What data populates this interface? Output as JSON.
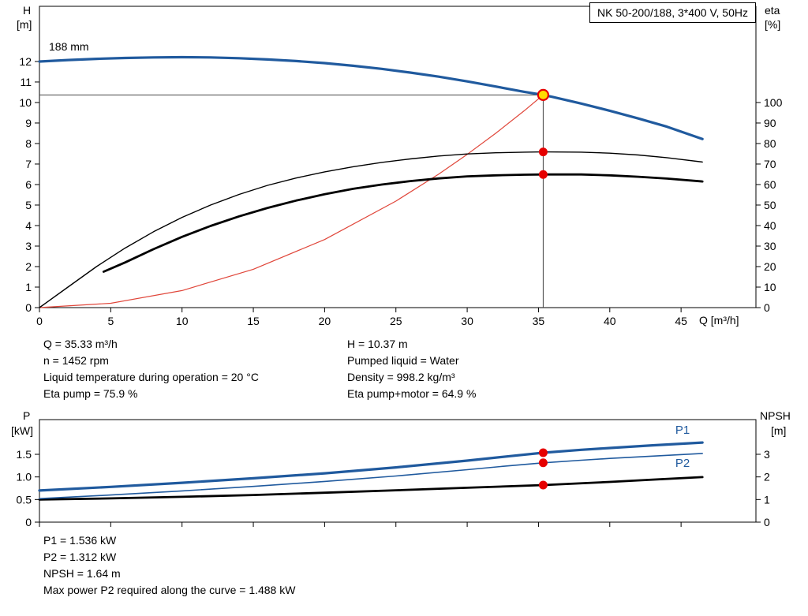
{
  "title_box": "NK 50-200/188, 3*400 V, 50Hz",
  "labels": {
    "impeller": "188 mm",
    "h_axis": [
      "H",
      "[m]"
    ],
    "eta_axis": [
      "eta",
      "[%]"
    ],
    "q_axis_unit": "Q [m³/h]",
    "p_axis": [
      "P",
      "[kW]"
    ],
    "npsh_axis": [
      "NPSH",
      "[m]"
    ]
  },
  "info_top_left": [
    "Q = 35.33 m³/h",
    "n = 1452 rpm",
    "Liquid temperature during operation = 20 °C",
    "Eta pump = 75.9 %"
  ],
  "info_top_right": [
    "H = 10.37 m",
    "Pumped liquid = Water",
    "Density = 998.2 kg/m³",
    "Eta pump+motor = 64.9 %"
  ],
  "info_bottom": [
    "P1 = 1.536 kW",
    "P2 = 1.312 kW",
    "NPSH = 1.64 m",
    "Max power P2 required along the curve = 1.488 kW"
  ],
  "colors": {
    "curve_blue": "#205a9e",
    "curve_red": "#e0463a",
    "dot_red": "#e60000",
    "duty_yellow": "#ffdd00",
    "black": "#000000",
    "crosshair": "#444444"
  },
  "duty_point": {
    "q": 35.33,
    "h": 10.37,
    "eta_pump": 75.9,
    "eta_pump_motor": 64.9,
    "p1": 1.536,
    "p2": 1.312,
    "npsh": 1.64
  },
  "chart_data": [
    {
      "type": "line",
      "name": "qh-eta-chart",
      "x": {
        "min": 0,
        "max": 50.25,
        "ticks": [
          [
            0,
            "0"
          ],
          [
            5,
            "5"
          ],
          [
            10,
            "10"
          ],
          [
            15,
            "15"
          ],
          [
            20,
            "20"
          ],
          [
            25,
            "25"
          ],
          [
            30,
            "30"
          ],
          [
            35,
            "35"
          ],
          [
            40,
            "40"
          ],
          [
            45,
            "45"
          ]
        ],
        "label": "Q [m³/h]"
      },
      "left": {
        "min": 0,
        "max": 14.69,
        "label": "H [m]",
        "ticks": [
          [
            0,
            "0"
          ],
          [
            1,
            "1"
          ],
          [
            2,
            "2"
          ],
          [
            3,
            "3"
          ],
          [
            4,
            "4"
          ],
          [
            5,
            "5"
          ],
          [
            6,
            "6"
          ],
          [
            7,
            "7"
          ],
          [
            8,
            "8"
          ],
          [
            9,
            "9"
          ],
          [
            10,
            "10"
          ],
          [
            11,
            "11"
          ],
          [
            12,
            "12"
          ]
        ]
      },
      "right": {
        "min": 0,
        "max": 146.9,
        "label": "eta [%]",
        "ticks": [
          [
            0,
            "0"
          ],
          [
            10,
            "10"
          ],
          [
            20,
            "20"
          ],
          [
            30,
            "30"
          ],
          [
            40,
            "40"
          ],
          [
            50,
            "50"
          ],
          [
            60,
            "60"
          ],
          [
            70,
            "70"
          ],
          [
            80,
            "80"
          ],
          [
            90,
            "90"
          ],
          [
            100,
            "100"
          ]
        ]
      },
      "crosshair": {
        "q": 35.33,
        "v": 10.37
      },
      "series": [
        {
          "name": "affinity-parabola",
          "axis": "left",
          "color": "#e0463a",
          "width": 1.2,
          "points": [
            [
              0,
              0
            ],
            [
              5,
              0.21
            ],
            [
              10,
              0.83
            ],
            [
              15,
              1.87
            ],
            [
              20,
              3.32
            ],
            [
              25,
              5.19
            ],
            [
              28,
              6.51
            ],
            [
              30,
              7.47
            ],
            [
              32,
              8.5
            ],
            [
              34,
              9.6
            ],
            [
              35.33,
              10.37
            ]
          ]
        },
        {
          "name": "eta-pump",
          "axis": "right",
          "color": "#000000",
          "width": 1.4,
          "points": [
            [
              0,
              0
            ],
            [
              2,
              10
            ],
            [
              4,
              20
            ],
            [
              6,
              29
            ],
            [
              8,
              37
            ],
            [
              10,
              44
            ],
            [
              12,
              50
            ],
            [
              14,
              55.2
            ],
            [
              16,
              59.6
            ],
            [
              18,
              63.2
            ],
            [
              20,
              66.2
            ],
            [
              22,
              68.7
            ],
            [
              24,
              70.8
            ],
            [
              26,
              72.5
            ],
            [
              28,
              73.9
            ],
            [
              30,
              74.9
            ],
            [
              32,
              75.5
            ],
            [
              34,
              75.8
            ],
            [
              35.33,
              75.9
            ],
            [
              38,
              75.8
            ],
            [
              40,
              75.3
            ],
            [
              42,
              74.4
            ],
            [
              44,
              73.1
            ],
            [
              46.5,
              71
            ]
          ]
        },
        {
          "name": "eta-pump-motor",
          "axis": "right",
          "color": "#000000",
          "width": 2.8,
          "points": [
            [
              4.5,
              17.5
            ],
            [
              6,
              22
            ],
            [
              8,
              28.5
            ],
            [
              10,
              34.5
            ],
            [
              12,
              39.8
            ],
            [
              14,
              44.5
            ],
            [
              16,
              48.6
            ],
            [
              18,
              52.2
            ],
            [
              20,
              55.3
            ],
            [
              22,
              57.9
            ],
            [
              24,
              60
            ],
            [
              26,
              61.7
            ],
            [
              28,
              63
            ],
            [
              30,
              64
            ],
            [
              32,
              64.5
            ],
            [
              34,
              64.8
            ],
            [
              35.33,
              64.9
            ],
            [
              38,
              64.9
            ],
            [
              40,
              64.5
            ],
            [
              42,
              63.8
            ],
            [
              44,
              62.9
            ],
            [
              46.5,
              61.5
            ]
          ]
        },
        {
          "name": "H-curve",
          "axis": "left",
          "color": "#205a9e",
          "width": 3.2,
          "points": [
            [
              0,
              12.0
            ],
            [
              2,
              12.07
            ],
            [
              4,
              12.13
            ],
            [
              6,
              12.17
            ],
            [
              8,
              12.2
            ],
            [
              10,
              12.21
            ],
            [
              12,
              12.2
            ],
            [
              14,
              12.16
            ],
            [
              16,
              12.1
            ],
            [
              18,
              12.02
            ],
            [
              20,
              11.92
            ],
            [
              22,
              11.79
            ],
            [
              24,
              11.64
            ],
            [
              26,
              11.46
            ],
            [
              28,
              11.26
            ],
            [
              30,
              11.03
            ],
            [
              32,
              10.78
            ],
            [
              34,
              10.52
            ],
            [
              35.33,
              10.37
            ],
            [
              36,
              10.27
            ],
            [
              38,
              9.95
            ],
            [
              40,
              9.6
            ],
            [
              42,
              9.22
            ],
            [
              44,
              8.82
            ],
            [
              46.5,
              8.22
            ]
          ]
        }
      ],
      "markers": [
        {
          "q": 35.33,
          "v": 10.37,
          "axis": "left",
          "kind": "duty"
        },
        {
          "q": 35.33,
          "v": 75.9,
          "axis": "right",
          "kind": "dot"
        },
        {
          "q": 35.33,
          "v": 64.9,
          "axis": "right",
          "kind": "dot"
        }
      ]
    },
    {
      "type": "line",
      "name": "power-npsh-chart",
      "x": {
        "min": 0,
        "max": 50.25,
        "ticks": [
          [
            0,
            ""
          ],
          [
            5,
            ""
          ],
          [
            10,
            ""
          ],
          [
            15,
            ""
          ],
          [
            20,
            ""
          ],
          [
            25,
            ""
          ],
          [
            30,
            ""
          ],
          [
            35,
            ""
          ],
          [
            40,
            ""
          ],
          [
            45,
            ""
          ]
        ],
        "label": ""
      },
      "left": {
        "min": 0,
        "max": 2.268,
        "label": "P [kW]",
        "ticks": [
          [
            0,
            "0"
          ],
          [
            0.5,
            "0.5"
          ],
          [
            1,
            "1.0"
          ],
          [
            1.5,
            "1.5"
          ]
        ]
      },
      "right": {
        "min": 0,
        "max": 4.534,
        "label": "NPSH [m]",
        "ticks": [
          [
            0,
            "0"
          ],
          [
            1,
            "1"
          ],
          [
            2,
            "2"
          ],
          [
            3,
            "3"
          ]
        ]
      },
      "series": [
        {
          "name": "NPSH",
          "axis": "right",
          "color": "#000000",
          "width": 2.8,
          "points": [
            [
              0,
              1.0
            ],
            [
              5,
              1.05
            ],
            [
              10,
              1.12
            ],
            [
              15,
              1.2
            ],
            [
              20,
              1.3
            ],
            [
              25,
              1.41
            ],
            [
              30,
              1.52
            ],
            [
              35.33,
              1.64
            ],
            [
              40,
              1.78
            ],
            [
              43,
              1.88
            ],
            [
              46.5,
              1.99
            ]
          ]
        },
        {
          "name": "P2",
          "axis": "left",
          "color": "#205a9e",
          "width": 1.6,
          "label_at": [
            44.6,
            1.22
          ],
          "points": [
            [
              0,
              0.52
            ],
            [
              5,
              0.6
            ],
            [
              10,
              0.69
            ],
            [
              15,
              0.79
            ],
            [
              20,
              0.9
            ],
            [
              25,
              1.02
            ],
            [
              30,
              1.16
            ],
            [
              33,
              1.25
            ],
            [
              35.33,
              1.312
            ],
            [
              38,
              1.37
            ],
            [
              40,
              1.41
            ],
            [
              43,
              1.46
            ],
            [
              46.5,
              1.52
            ]
          ]
        },
        {
          "name": "P1",
          "axis": "left",
          "color": "#205a9e",
          "width": 3.2,
          "label_at": [
            44.6,
            1.95
          ],
          "points": [
            [
              0,
              0.7
            ],
            [
              5,
              0.78
            ],
            [
              10,
              0.87
            ],
            [
              15,
              0.97
            ],
            [
              20,
              1.08
            ],
            [
              25,
              1.21
            ],
            [
              30,
              1.36
            ],
            [
              33,
              1.46
            ],
            [
              35.33,
              1.536
            ],
            [
              38,
              1.6
            ],
            [
              40,
              1.64
            ],
            [
              43,
              1.7
            ],
            [
              46.5,
              1.76
            ]
          ]
        }
      ],
      "markers": [
        {
          "q": 35.33,
          "v": 1.536,
          "axis": "left",
          "kind": "dot"
        },
        {
          "q": 35.33,
          "v": 1.312,
          "axis": "left",
          "kind": "dot"
        },
        {
          "q": 35.33,
          "v": 1.64,
          "axis": "right",
          "kind": "dot"
        }
      ]
    }
  ]
}
